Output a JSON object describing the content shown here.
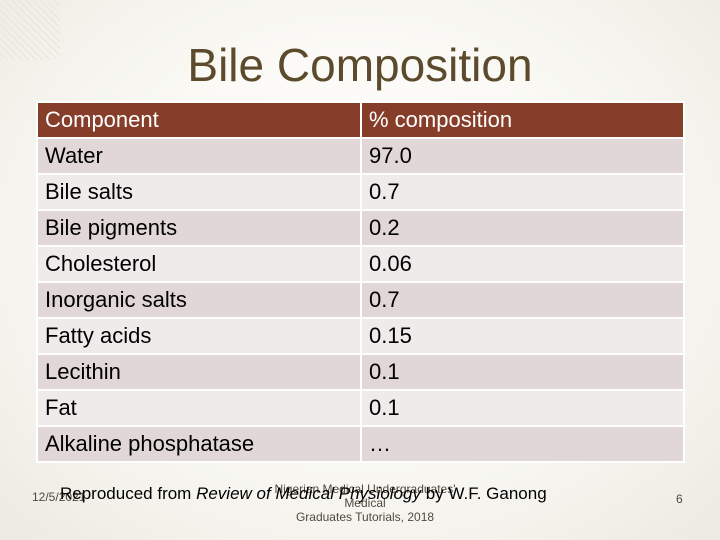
{
  "title": "Bile Composition",
  "table": {
    "headers": [
      "Component",
      "% composition"
    ],
    "rows": [
      [
        "Water",
        "97.0"
      ],
      [
        "Bile salts",
        "0.7"
      ],
      [
        "Bile pigments",
        "0.2"
      ],
      [
        "Cholesterol",
        "0.06"
      ],
      [
        "Inorganic salts",
        "0.7"
      ],
      [
        "Fatty acids",
        "0.15"
      ],
      [
        "Lecithin",
        "0.1"
      ],
      [
        "Fat",
        "0.1"
      ],
      [
        "Alkaline phosphatase",
        "…"
      ]
    ]
  },
  "credit": {
    "prefix": "Reproduced from",
    "book": "Review of Medical Physiology",
    "suffix": "by W.F. Ganong"
  },
  "footer": {
    "date": "12/5/2021",
    "note_line1": "Nigerian Medical Undergraduates' Medical",
    "note_line2": "Graduates Tutorials, 2018",
    "slide_number": "6"
  },
  "colors": {
    "header_bg": "#863e2a",
    "row_even": "#e2d7d7",
    "row_odd": "#f0ebeb",
    "title": "#5b4a2c"
  }
}
